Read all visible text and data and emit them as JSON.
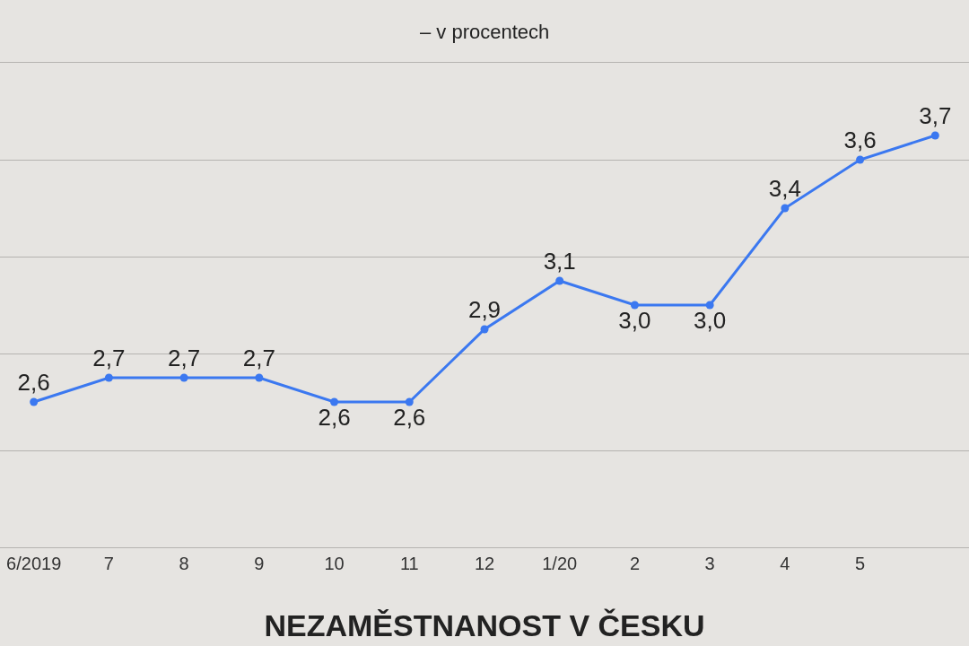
{
  "chart_data": {
    "type": "line",
    "title": "NEZAMĚSTNANOST V ČESKU",
    "subtitle": "– v procentech",
    "categories": [
      "6/2019",
      "7",
      "8",
      "9",
      "10",
      "11",
      "12",
      "1/20",
      "2",
      "3",
      "4",
      "5",
      null
    ],
    "values": [
      2.6,
      2.7,
      2.7,
      2.7,
      2.6,
      2.6,
      2.9,
      3.1,
      3.0,
      3.0,
      3.4,
      3.6,
      3.7
    ],
    "value_labels": [
      "2,6",
      "2,7",
      "2,7",
      "2,7",
      "2,6",
      "2,6",
      "2,9",
      "3,1",
      "3,0",
      "3,0",
      "3,4",
      "3,6",
      "3,7"
    ],
    "color": "#3b78f0",
    "marker": "circle",
    "line_style": "solid",
    "ylim": [
      2.0,
      4.0
    ],
    "yticks": [
      {
        "value": 2.4,
        "label": null
      },
      {
        "value": 2.8,
        "label": null
      },
      {
        "value": 3.2,
        "label": null
      },
      {
        "value": 3.6,
        "label": null
      }
    ],
    "tick_labels": "x",
    "grid": "y"
  }
}
